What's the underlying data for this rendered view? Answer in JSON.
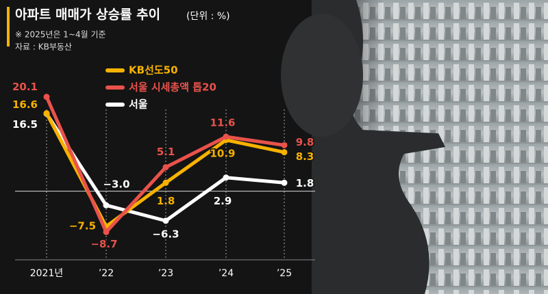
{
  "chart_data": {
    "type": "line",
    "title": "아파트 매매가 상승률 추이",
    "subtitle": "(단위 : %)",
    "notes": [
      "※ 2025년은 1~4월 기준",
      "자료 : KB부동산"
    ],
    "categories": [
      "2021년",
      "’22",
      "’23",
      "’24",
      "’25"
    ],
    "ylim": [
      -12,
      25
    ],
    "series": [
      {
        "name": "KB선도50",
        "color": "#f7b200",
        "values": [
          16.6,
          -7.5,
          1.8,
          10.9,
          8.3
        ],
        "value_labels": [
          "16.6",
          "−7.5",
          "1.8",
          "10.9",
          "8.3"
        ]
      },
      {
        "name": "서울 시세총액 톱20",
        "color": "#e9524b",
        "values": [
          20.1,
          -8.7,
          5.1,
          11.6,
          9.8
        ],
        "value_labels": [
          "20.1",
          "−8.7",
          "5.1",
          "11.6",
          "9.8"
        ]
      },
      {
        "name": "서울",
        "color": "#ffffff",
        "values": [
          16.5,
          -3.0,
          -6.3,
          2.9,
          1.8
        ],
        "value_labels": [
          "16.5",
          "−3.0",
          "−6.3",
          "2.9",
          "1.8"
        ]
      }
    ]
  }
}
